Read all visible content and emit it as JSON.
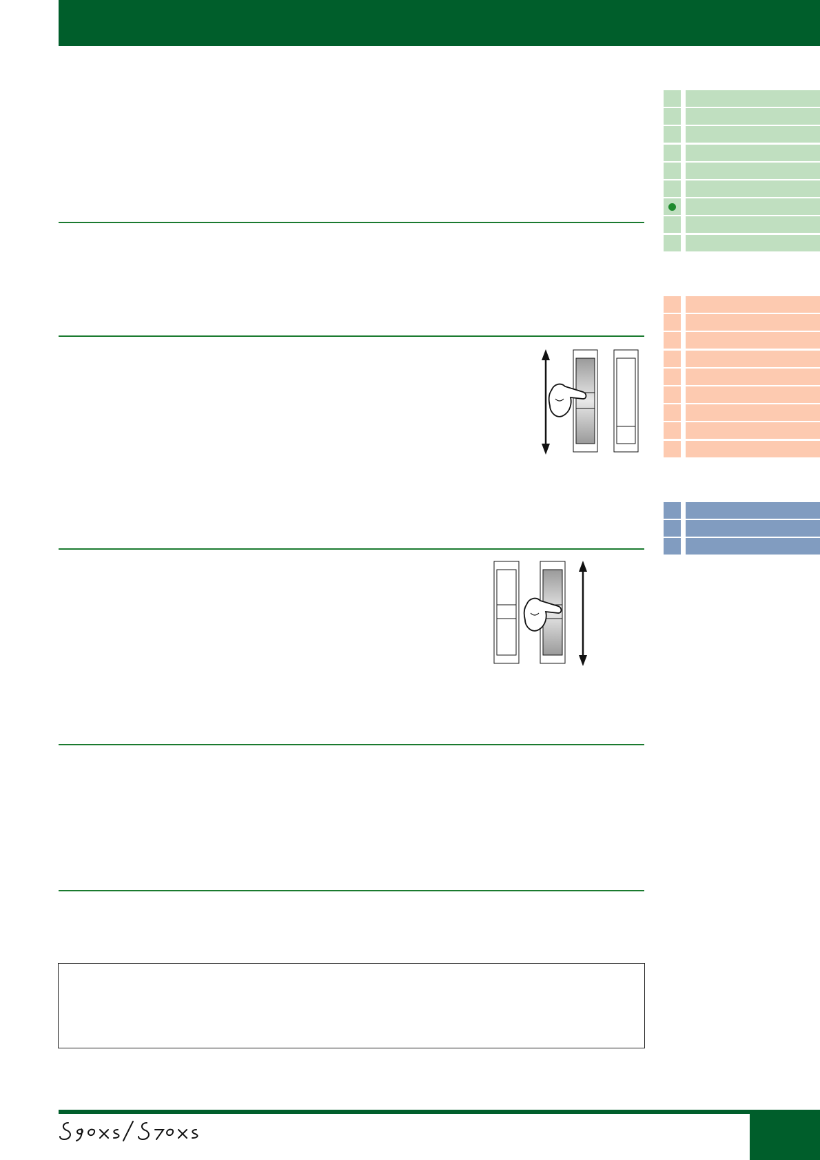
{
  "header": {
    "color": "#005e2b"
  },
  "nav_groups": [
    {
      "name": "green",
      "color": "#c0dfc0",
      "item_count": 9,
      "active_index": 6
    },
    {
      "name": "peach",
      "color": "#fdcab0",
      "item_count": 9
    },
    {
      "name": "blue",
      "color": "#819cc0",
      "item_count": 3
    }
  ],
  "figures": [
    {
      "name": "slider-figure-upper",
      "icons": [
        "vertical-double-arrow-icon",
        "slider-knob-icon",
        "pointing-hand-icon"
      ]
    },
    {
      "name": "slider-figure-lower",
      "icons": [
        "slider-knob-icon",
        "pointing-hand-icon",
        "vertical-double-arrow-icon"
      ]
    }
  ],
  "footer": {
    "color": "#005e2b"
  }
}
